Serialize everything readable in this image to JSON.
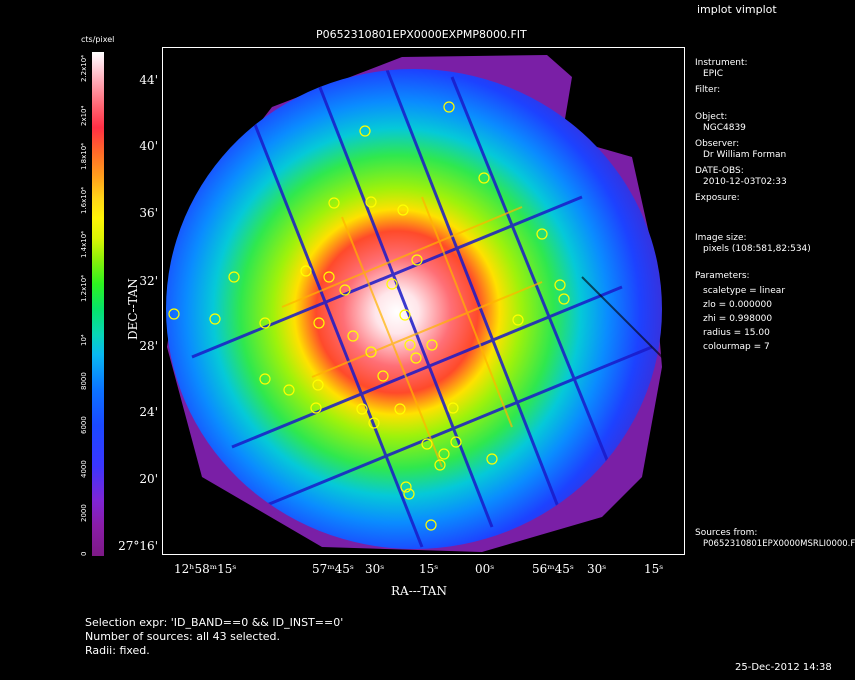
{
  "app": {
    "name": "implot vimplot"
  },
  "image": {
    "filename": "P0652310801EPX0000EXPMP8000.FIT"
  },
  "colorbar": {
    "unit": "cts/pixel",
    "ticks": [
      "0",
      "2000",
      "4000",
      "6000",
      "8000",
      "10⁴",
      "1.2x10⁴",
      "1.4x10⁴",
      "1.6x10⁴",
      "1.8x10⁴",
      "2x10⁴",
      "2.2x10⁴"
    ]
  },
  "axes": {
    "ylabel": "DEC--TAN",
    "xlabel": "RA---TAN",
    "yticks": [
      "44'",
      "40'",
      "36'",
      "32'",
      "28'",
      "24'",
      "20'",
      "27°16'"
    ],
    "xticks": [
      "12ʰ58ᵐ15ˢ",
      "57ᵐ45ˢ",
      "30ˢ",
      "15ˢ",
      "00ˢ",
      "56ᵐ45ˢ",
      "30ˢ",
      "15ˢ"
    ]
  },
  "info": {
    "instrument_label": "Instrument:",
    "instrument": "EPIC",
    "filter_label": "Filter:",
    "object_label": "Object:",
    "object": "NGC4839",
    "observer_label": "Observer:",
    "observer": "Dr William Forman",
    "date_label": "DATE-OBS:",
    "date": "2010-12-03T02:33",
    "exposure_label": "Exposure:",
    "image_size_label": "Image size:",
    "image_size": "pixels (108:581,82:534)",
    "parameters_label": "Parameters:",
    "p_scale": "scaletype = linear",
    "p_zlo": "zlo = 0.000000",
    "p_zhi": "zhi = 0.998000",
    "p_radius": "radius = 15.00",
    "p_colourmap": "colourmap = 7",
    "sources_label": "Sources from:",
    "sources_file": "P0652310801EPX0000MSRLI0000.F"
  },
  "footer": {
    "selection": "Selection expr: 'ID_BAND==0 && ID_INST==0'",
    "count": "Number of sources: all 43 selected.",
    "radii": "Radii: fixed.",
    "timestamp": "25-Dec-2012 14:38"
  },
  "colors": {
    "background": "#000000",
    "source_circle": "#ffff00"
  }
}
